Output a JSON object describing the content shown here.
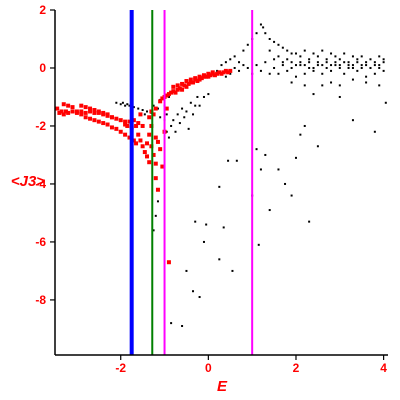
{
  "colors": {
    "axes_text": "#ff0000",
    "frame": "#000000",
    "red_series": "#ff0000",
    "black_series": "#000000",
    "blue_line": "#0000ff",
    "green_line": "#008000",
    "magenta_line": "#ff00ff"
  },
  "chart_data": {
    "type": "scatter",
    "title": "",
    "xlabel": "E",
    "ylabel": "<J3>",
    "xlim": [
      -3.5,
      4.1
    ],
    "ylim": [
      -9.9,
      2.0
    ],
    "x_ticks": [
      -2,
      0,
      2,
      4
    ],
    "y_ticks": [
      2,
      0,
      -2,
      -4,
      -6,
      -8
    ],
    "grid": false,
    "vertical_lines": [
      {
        "x": -1.75,
        "color": "blue"
      },
      {
        "x": -1.28,
        "color": "green"
      },
      {
        "x": -1.0,
        "color": "magenta"
      },
      {
        "x": 1.0,
        "color": "magenta"
      }
    ],
    "red_points": [
      [
        -3.45,
        -1.4
      ],
      [
        -3.4,
        -1.55
      ],
      [
        -3.35,
        -1.5
      ],
      [
        -3.3,
        -1.6
      ],
      [
        -3.25,
        -1.5
      ],
      [
        -3.2,
        -1.55
      ],
      [
        -3.1,
        -1.5
      ],
      [
        -3.0,
        -1.55
      ],
      [
        -2.9,
        -1.5
      ],
      [
        -2.8,
        -1.55
      ],
      [
        -2.7,
        -1.5
      ],
      [
        -2.6,
        -1.55
      ],
      [
        -2.5,
        -1.55
      ],
      [
        -2.4,
        -1.6
      ],
      [
        -2.3,
        -1.65
      ],
      [
        -2.2,
        -1.7
      ],
      [
        -2.1,
        -1.75
      ],
      [
        -2.0,
        -1.8
      ],
      [
        -1.9,
        -1.85
      ],
      [
        -3.3,
        -1.25
      ],
      [
        -3.2,
        -1.3
      ],
      [
        -3.1,
        -1.35
      ],
      [
        -3.0,
        -1.5
      ],
      [
        -2.9,
        -1.6
      ],
      [
        -2.8,
        -1.7
      ],
      [
        -2.7,
        -1.75
      ],
      [
        -2.6,
        -1.8
      ],
      [
        -2.5,
        -1.85
      ],
      [
        -2.4,
        -1.9
      ],
      [
        -2.3,
        -1.95
      ],
      [
        -2.2,
        -2.05
      ],
      [
        -2.1,
        -2.1
      ],
      [
        -2.0,
        -2.2
      ],
      [
        -1.9,
        -2.3
      ],
      [
        -1.8,
        -2.4
      ],
      [
        -1.7,
        -2.5
      ],
      [
        -1.65,
        -2.6
      ],
      [
        -2.9,
        -1.3
      ],
      [
        -2.8,
        -1.35
      ],
      [
        -2.7,
        -1.4
      ],
      [
        -2.6,
        -1.45
      ],
      [
        -2.5,
        -1.5
      ],
      [
        -2.4,
        -1.55
      ],
      [
        -2.3,
        -1.6
      ],
      [
        -2.2,
        -1.7
      ],
      [
        -1.9,
        -1.95
      ],
      [
        -1.85,
        -2.0
      ],
      [
        -1.8,
        -1.85
      ],
      [
        -1.75,
        -2.05
      ],
      [
        -1.7,
        -1.8
      ],
      [
        -1.65,
        -2.0
      ],
      [
        -1.6,
        -1.9
      ],
      [
        -1.55,
        -1.6
      ],
      [
        -1.5,
        -2.0
      ],
      [
        -1.6,
        -2.3
      ],
      [
        -1.55,
        -2.5
      ],
      [
        -1.5,
        -2.7
      ],
      [
        -1.45,
        -2.9
      ],
      [
        -1.4,
        -3.05
      ],
      [
        -1.35,
        -3.25
      ],
      [
        -1.4,
        -2.6
      ],
      [
        -1.35,
        -2.3
      ],
      [
        -1.3,
        -2.7
      ],
      [
        -1.25,
        -3.0
      ],
      [
        -1.2,
        -3.3
      ],
      [
        -1.2,
        -3.8
      ],
      [
        -1.15,
        -4.2
      ],
      [
        -1.2,
        -2.4
      ],
      [
        -1.15,
        -2.55
      ],
      [
        -1.1,
        -2.8
      ],
      [
        -1.3,
        -2.0
      ],
      [
        -1.1,
        -1.15
      ],
      [
        -1.05,
        -1.05
      ],
      [
        -1.0,
        -1.0
      ],
      [
        -0.95,
        -0.95
      ],
      [
        -0.9,
        -0.9
      ],
      [
        -0.85,
        -0.85
      ],
      [
        -0.8,
        -0.8
      ],
      [
        -0.75,
        -0.85
      ],
      [
        -0.7,
        -0.75
      ],
      [
        -0.65,
        -0.7
      ],
      [
        -0.6,
        -0.75
      ],
      [
        -0.55,
        -0.6
      ],
      [
        -0.5,
        -0.65
      ],
      [
        -0.45,
        -0.55
      ],
      [
        -0.4,
        -0.5
      ],
      [
        -0.35,
        -0.5
      ],
      [
        -0.3,
        -0.4
      ],
      [
        -0.25,
        -0.45
      ],
      [
        -0.2,
        -0.4
      ],
      [
        -0.15,
        -0.35
      ],
      [
        -0.1,
        -0.3
      ],
      [
        -0.05,
        -0.3
      ],
      [
        0.0,
        -0.3
      ],
      [
        0.05,
        -0.25
      ],
      [
        0.1,
        -0.2
      ],
      [
        0.15,
        -0.25
      ],
      [
        0.2,
        -0.2
      ],
      [
        0.25,
        -0.15
      ],
      [
        0.3,
        -0.2
      ],
      [
        0.35,
        -0.15
      ],
      [
        0.4,
        -0.1
      ],
      [
        0.45,
        -0.15
      ],
      [
        0.5,
        -0.1
      ],
      [
        -0.8,
        -0.65
      ],
      [
        -0.7,
        -0.6
      ],
      [
        -0.6,
        -0.55
      ],
      [
        -0.5,
        -0.45
      ],
      [
        -0.4,
        -0.4
      ],
      [
        -0.3,
        -0.35
      ],
      [
        -0.2,
        -0.3
      ],
      [
        -0.1,
        -0.25
      ],
      [
        0.0,
        -0.2
      ],
      [
        0.1,
        -0.15
      ],
      [
        -1.3,
        -1.5
      ],
      [
        -1.25,
        -1.6
      ],
      [
        -1.2,
        -1.4
      ],
      [
        -1.35,
        -1.7
      ],
      [
        -0.9,
        -6.7
      ],
      [
        -1.05,
        -3.4
      ],
      [
        -1.0,
        -2.2
      ],
      [
        -0.95,
        -1.4
      ]
    ],
    "black_points": [
      [
        -2.1,
        -1.2
      ],
      [
        -2.0,
        -1.25
      ],
      [
        -1.95,
        -1.2
      ],
      [
        -1.9,
        -1.3
      ],
      [
        -1.85,
        -1.25
      ],
      [
        -1.8,
        -1.3
      ],
      [
        -1.7,
        -1.35
      ],
      [
        -1.6,
        -1.4
      ],
      [
        -1.5,
        -1.45
      ],
      [
        -1.45,
        -1.6
      ],
      [
        -1.4,
        -1.5
      ],
      [
        -1.3,
        -1.55
      ],
      [
        -1.25,
        -1.3
      ],
      [
        -1.2,
        -5.1
      ],
      [
        -1.25,
        -5.6
      ],
      [
        -1.15,
        -4.6
      ],
      [
        -0.95,
        -2.2
      ],
      [
        -0.9,
        -2.4
      ],
      [
        -0.85,
        -2.0
      ],
      [
        -0.8,
        -1.8
      ],
      [
        -0.75,
        -2.2
      ],
      [
        -0.7,
        -1.6
      ],
      [
        -0.65,
        -1.9
      ],
      [
        -0.6,
        -1.4
      ],
      [
        -0.55,
        -1.7
      ],
      [
        -0.5,
        -1.5
      ],
      [
        -0.45,
        -2.1
      ],
      [
        -0.4,
        -1.2
      ],
      [
        -0.35,
        -1.6
      ],
      [
        -0.3,
        -1.3
      ],
      [
        -0.25,
        -1.0
      ],
      [
        -0.2,
        -1.3
      ],
      [
        -0.1,
        -1.0
      ],
      [
        0.0,
        -0.9
      ],
      [
        -0.85,
        -8.8
      ],
      [
        -0.6,
        -8.9
      ],
      [
        -0.5,
        -7.0
      ],
      [
        -0.35,
        -7.7
      ],
      [
        -0.2,
        -7.9
      ],
      [
        -0.1,
        -6.0
      ],
      [
        -0.3,
        -5.3
      ],
      [
        -0.05,
        -5.4
      ],
      [
        0.25,
        -6.6
      ],
      [
        0.35,
        -5.5
      ],
      [
        0.55,
        -7.0
      ],
      [
        0.65,
        -3.2
      ],
      [
        0.25,
        -4.1
      ],
      [
        0.45,
        -3.2
      ],
      [
        1.1,
        -2.8
      ],
      [
        1.2,
        -3.5
      ],
      [
        1.3,
        -3.0
      ],
      [
        1.0,
        -4.4
      ],
      [
        1.15,
        -6.1
      ],
      [
        1.4,
        -4.9
      ],
      [
        1.6,
        -3.5
      ],
      [
        1.75,
        -4.0
      ],
      [
        1.9,
        -4.4
      ],
      [
        2.0,
        -3.1
      ],
      [
        2.1,
        -2.3
      ],
      [
        2.2,
        -2.0
      ],
      [
        2.3,
        -5.3
      ],
      [
        2.5,
        -2.7
      ],
      [
        3.0,
        -1.0
      ],
      [
        3.3,
        -1.8
      ],
      [
        3.8,
        -2.2
      ],
      [
        -1.0,
        -1.8
      ],
      [
        -1.1,
        -1.7
      ],
      [
        -1.0,
        -1.3
      ],
      [
        -0.95,
        -1.6
      ],
      [
        -0.9,
        -1.0
      ],
      [
        -1.15,
        -1.4
      ],
      [
        -1.1,
        -1.1
      ],
      [
        0.2,
        -0.1
      ],
      [
        0.3,
        0.1
      ],
      [
        0.4,
        0.2
      ],
      [
        0.5,
        0.3
      ],
      [
        0.6,
        0.4
      ],
      [
        0.7,
        0.2
      ],
      [
        0.8,
        0.6
      ],
      [
        0.9,
        0.8
      ],
      [
        1.0,
        1.0
      ],
      [
        1.1,
        1.2
      ],
      [
        1.2,
        1.5
      ],
      [
        1.25,
        1.4
      ],
      [
        1.3,
        1.2
      ],
      [
        1.4,
        1.0
      ],
      [
        1.5,
        0.9
      ],
      [
        1.6,
        0.8
      ],
      [
        1.7,
        0.7
      ],
      [
        1.8,
        0.6
      ],
      [
        1.9,
        0.5
      ],
      [
        2.0,
        0.5
      ],
      [
        2.1,
        0.4
      ],
      [
        2.2,
        0.6
      ],
      [
        2.3,
        0.3
      ],
      [
        2.4,
        0.5
      ],
      [
        2.5,
        0.4
      ],
      [
        2.6,
        0.6
      ],
      [
        2.7,
        0.3
      ],
      [
        2.8,
        0.5
      ],
      [
        2.9,
        0.4
      ],
      [
        3.0,
        0.3
      ],
      [
        3.1,
        0.5
      ],
      [
        3.2,
        0.2
      ],
      [
        3.3,
        0.4
      ],
      [
        3.4,
        0.3
      ],
      [
        3.5,
        0.4
      ],
      [
        3.6,
        0.2
      ],
      [
        3.7,
        0.3
      ],
      [
        3.8,
        0.1
      ],
      [
        3.9,
        0.4
      ],
      [
        4.0,
        0.3
      ],
      [
        0.4,
        -0.3
      ],
      [
        0.5,
        -0.2
      ],
      [
        0.6,
        0.0
      ],
      [
        0.7,
        -0.1
      ],
      [
        0.8,
        0.1
      ],
      [
        0.9,
        0.0
      ],
      [
        1.0,
        -0.2
      ],
      [
        1.1,
        0.1
      ],
      [
        1.2,
        -0.1
      ],
      [
        1.3,
        0.2
      ],
      [
        1.4,
        -0.2
      ],
      [
        1.5,
        0.0
      ],
      [
        1.6,
        -0.2
      ],
      [
        1.7,
        0.1
      ],
      [
        1.8,
        -0.1
      ],
      [
        1.9,
        0.0
      ],
      [
        2.0,
        -0.3
      ],
      [
        2.1,
        0.1
      ],
      [
        2.2,
        -0.2
      ],
      [
        2.3,
        0.0
      ],
      [
        2.4,
        -0.1
      ],
      [
        2.5,
        0.1
      ],
      [
        2.6,
        -0.2
      ],
      [
        2.7,
        0.0
      ],
      [
        2.8,
        -0.1
      ],
      [
        2.9,
        0.1
      ],
      [
        3.0,
        0.0
      ],
      [
        3.1,
        -0.2
      ],
      [
        3.2,
        0.1
      ],
      [
        3.3,
        0.0
      ],
      [
        3.4,
        -0.1
      ],
      [
        3.5,
        0.0
      ],
      [
        3.6,
        -0.3
      ],
      [
        3.7,
        0.0
      ],
      [
        3.8,
        -0.2
      ],
      [
        3.9,
        0.0
      ],
      [
        4.0,
        -0.1
      ],
      [
        1.4,
        0.6
      ],
      [
        1.5,
        0.3
      ],
      [
        1.6,
        0.4
      ],
      [
        1.7,
        0.2
      ],
      [
        1.8,
        0.3
      ],
      [
        1.9,
        0.2
      ],
      [
        2.0,
        0.1
      ],
      [
        2.1,
        0.2
      ],
      [
        2.2,
        0.1
      ],
      [
        2.3,
        0.2
      ],
      [
        2.4,
        0.0
      ],
      [
        2.5,
        0.2
      ],
      [
        2.6,
        0.1
      ],
      [
        2.7,
        0.2
      ],
      [
        2.8,
        0.1
      ],
      [
        2.9,
        0.2
      ],
      [
        3.0,
        0.1
      ],
      [
        3.1,
        0.2
      ],
      [
        3.2,
        0.0
      ],
      [
        3.3,
        0.1
      ],
      [
        3.4,
        0.2
      ],
      [
        3.5,
        0.1
      ],
      [
        3.6,
        0.1
      ],
      [
        3.7,
        0.0
      ],
      [
        3.8,
        0.2
      ],
      [
        3.9,
        0.1
      ],
      [
        4.0,
        0.2
      ],
      [
        2.4,
        -0.9
      ],
      [
        2.6,
        -0.6
      ],
      [
        2.8,
        -0.5
      ],
      [
        3.0,
        -0.6
      ],
      [
        3.3,
        -0.4
      ],
      [
        3.6,
        -0.5
      ],
      [
        3.9,
        -0.6
      ],
      [
        4.05,
        -1.2
      ],
      [
        2.2,
        -0.6
      ],
      [
        1.9,
        -0.5
      ]
    ]
  }
}
